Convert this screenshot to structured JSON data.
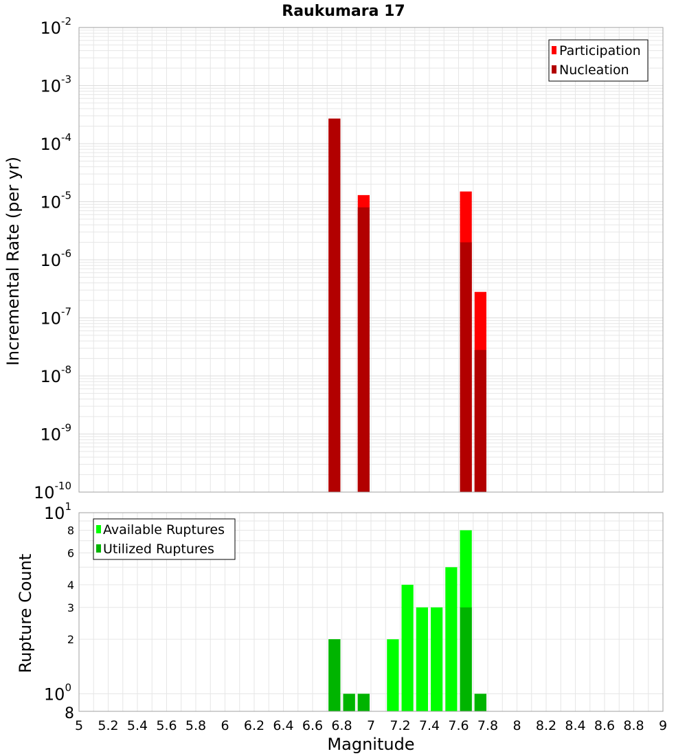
{
  "title": "Raukumara 17",
  "colors": {
    "participation": "#ff0000",
    "nucleation": "#b20000",
    "available": "#00ff00",
    "utilized": "#00b400",
    "grid": "#e6e6e6",
    "frame": "#a0a0a0"
  },
  "chart_data": [
    {
      "type": "bar",
      "ylabel": "Incremental Rate (per yr)",
      "yscale": "log",
      "ylim": [
        1e-10,
        0.01
      ],
      "xlim": [
        5,
        9
      ],
      "grid": true,
      "legend_position": "top-right",
      "y_ticks": [
        {
          "base": "10",
          "exp": "-2"
        },
        {
          "base": "10",
          "exp": "-3"
        },
        {
          "base": "10",
          "exp": "-4"
        },
        {
          "base": "10",
          "exp": "-5"
        },
        {
          "base": "10",
          "exp": "-6"
        },
        {
          "base": "10",
          "exp": "-7"
        },
        {
          "base": "10",
          "exp": "-8"
        },
        {
          "base": "10",
          "exp": "-9"
        },
        {
          "base": "10",
          "exp": "-10"
        }
      ],
      "series": [
        {
          "name": "Participation",
          "x": [
            6.75,
            6.95,
            7.65,
            7.75
          ],
          "values": [
            0.00027,
            1.3e-05,
            1.5e-05,
            2.8e-07
          ]
        },
        {
          "name": "Nucleation",
          "x": [
            6.75,
            6.95,
            7.65,
            7.75
          ],
          "values": [
            0.00027,
            8e-06,
            2e-06,
            2.8e-08
          ]
        }
      ]
    },
    {
      "type": "bar",
      "xlabel": "Magnitude",
      "ylabel": "Rupture Count",
      "yscale": "log",
      "ylim": [
        0.8,
        10
      ],
      "xlim": [
        5,
        9
      ],
      "grid": true,
      "legend_position": "top-left",
      "y_ticks_minor": [
        {
          "label": "8",
          "value": 8
        },
        {
          "label": "6",
          "value": 6
        },
        {
          "label": "4",
          "value": 4
        },
        {
          "label": "3",
          "value": 3
        },
        {
          "label": "2",
          "value": 2
        }
      ],
      "y_ticks_major": [
        {
          "base": "10",
          "exp": "1",
          "value": 10
        },
        {
          "base": "10",
          "exp": "0",
          "value": 1
        }
      ],
      "y_bottom_label": "8",
      "x_ticks": [
        "5",
        "5.2",
        "5.4",
        "5.6",
        "5.8",
        "6",
        "6.2",
        "6.4",
        "6.6",
        "6.8",
        "7",
        "7.2",
        "7.4",
        "7.6",
        "7.8",
        "8",
        "8.2",
        "8.4",
        "8.6",
        "8.8",
        "9"
      ],
      "series": [
        {
          "name": "Available Ruptures",
          "x": [
            6.75,
            6.85,
            6.95,
            7.15,
            7.25,
            7.35,
            7.45,
            7.55,
            7.65,
            7.75
          ],
          "values": [
            2,
            1,
            1,
            2,
            4,
            3,
            3,
            5,
            8,
            1
          ]
        },
        {
          "name": "Utilized Ruptures",
          "x": [
            6.75,
            6.85,
            6.95,
            7.15,
            7.25,
            7.35,
            7.45,
            7.55,
            7.65,
            7.75
          ],
          "values": [
            2,
            1,
            1,
            0,
            0,
            0,
            0,
            0,
            3,
            1
          ]
        }
      ]
    }
  ]
}
